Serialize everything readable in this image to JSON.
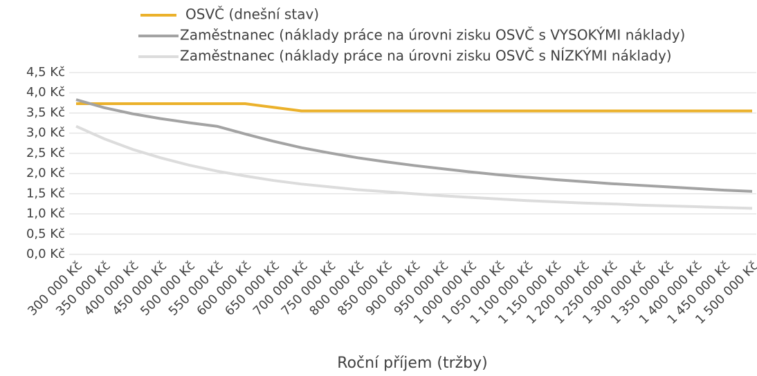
{
  "chart_data": {
    "type": "line",
    "xlabel": "Roční příjem (tržby)",
    "categories": [
      "300 000 Kč",
      "350 000 Kč",
      "400 000 Kč",
      "450 000 Kč",
      "500 000 Kč",
      "550 000 Kč",
      "600 000 Kč",
      "650 000 Kč",
      "700 000 Kč",
      "750 000 Kč",
      "800 000 Kč",
      "850 000 Kč",
      "900 000 Kč",
      "950 000 Kč",
      "1 000 000 Kč",
      "1 050 000 Kč",
      "1 100 000 Kč",
      "1 150 000 Kč",
      "1 200 000 Kč",
      "1 250 000 Kč",
      "1 300 000 Kč",
      "1 350 000 Kč",
      "1 400 000 Kč",
      "1 450 000 Kč",
      "1 500 000 Kč"
    ],
    "series": [
      {
        "name": "OSVČ (dnešní stav)",
        "color": "#ebb12b",
        "values": [
          3.73,
          3.73,
          3.73,
          3.73,
          3.73,
          3.73,
          3.73,
          3.64,
          3.55,
          3.55,
          3.55,
          3.55,
          3.55,
          3.55,
          3.55,
          3.55,
          3.55,
          3.55,
          3.55,
          3.55,
          3.55,
          3.55,
          3.55,
          3.55,
          3.55
        ]
      },
      {
        "name": "Zaměstnanec (náklady práce na úrovni zisku OSVČ s VYSOKÝMI náklady)",
        "color": "#a3a3a3",
        "values": [
          3.83,
          3.63,
          3.48,
          3.36,
          3.26,
          3.17,
          2.98,
          2.8,
          2.64,
          2.51,
          2.39,
          2.29,
          2.2,
          2.12,
          2.04,
          1.97,
          1.91,
          1.85,
          1.8,
          1.75,
          1.71,
          1.67,
          1.63,
          1.59,
          1.56
        ]
      },
      {
        "name": "Zaměstnanec (náklady práce na úrovni zisku OSVČ s NÍZKÝMI náklady)",
        "color": "#dcdcdc",
        "values": [
          3.17,
          2.86,
          2.6,
          2.39,
          2.21,
          2.06,
          1.94,
          1.83,
          1.74,
          1.67,
          1.6,
          1.55,
          1.5,
          1.45,
          1.41,
          1.37,
          1.33,
          1.3,
          1.27,
          1.25,
          1.22,
          1.2,
          1.18,
          1.16,
          1.14
        ]
      }
    ],
    "ylim": [
      0,
      4.5
    ],
    "yticks": [
      {
        "value": 0,
        "label": "0,0 Kč"
      },
      {
        "value": 0.5,
        "label": "0,5 Kč"
      },
      {
        "value": 1,
        "label": "1,0 Kč"
      },
      {
        "value": 1.5,
        "label": "1,5 Kč"
      },
      {
        "value": 2,
        "label": "2,0 Kč"
      },
      {
        "value": 2.5,
        "label": "2,5 Kč"
      },
      {
        "value": 3,
        "label": "3,0 Kč"
      },
      {
        "value": 3.5,
        "label": "3,5 Kč"
      },
      {
        "value": 4,
        "label": "4,0 Kč"
      },
      {
        "value": 4.5,
        "label": "4,5 Kč"
      }
    ],
    "grid": true
  }
}
